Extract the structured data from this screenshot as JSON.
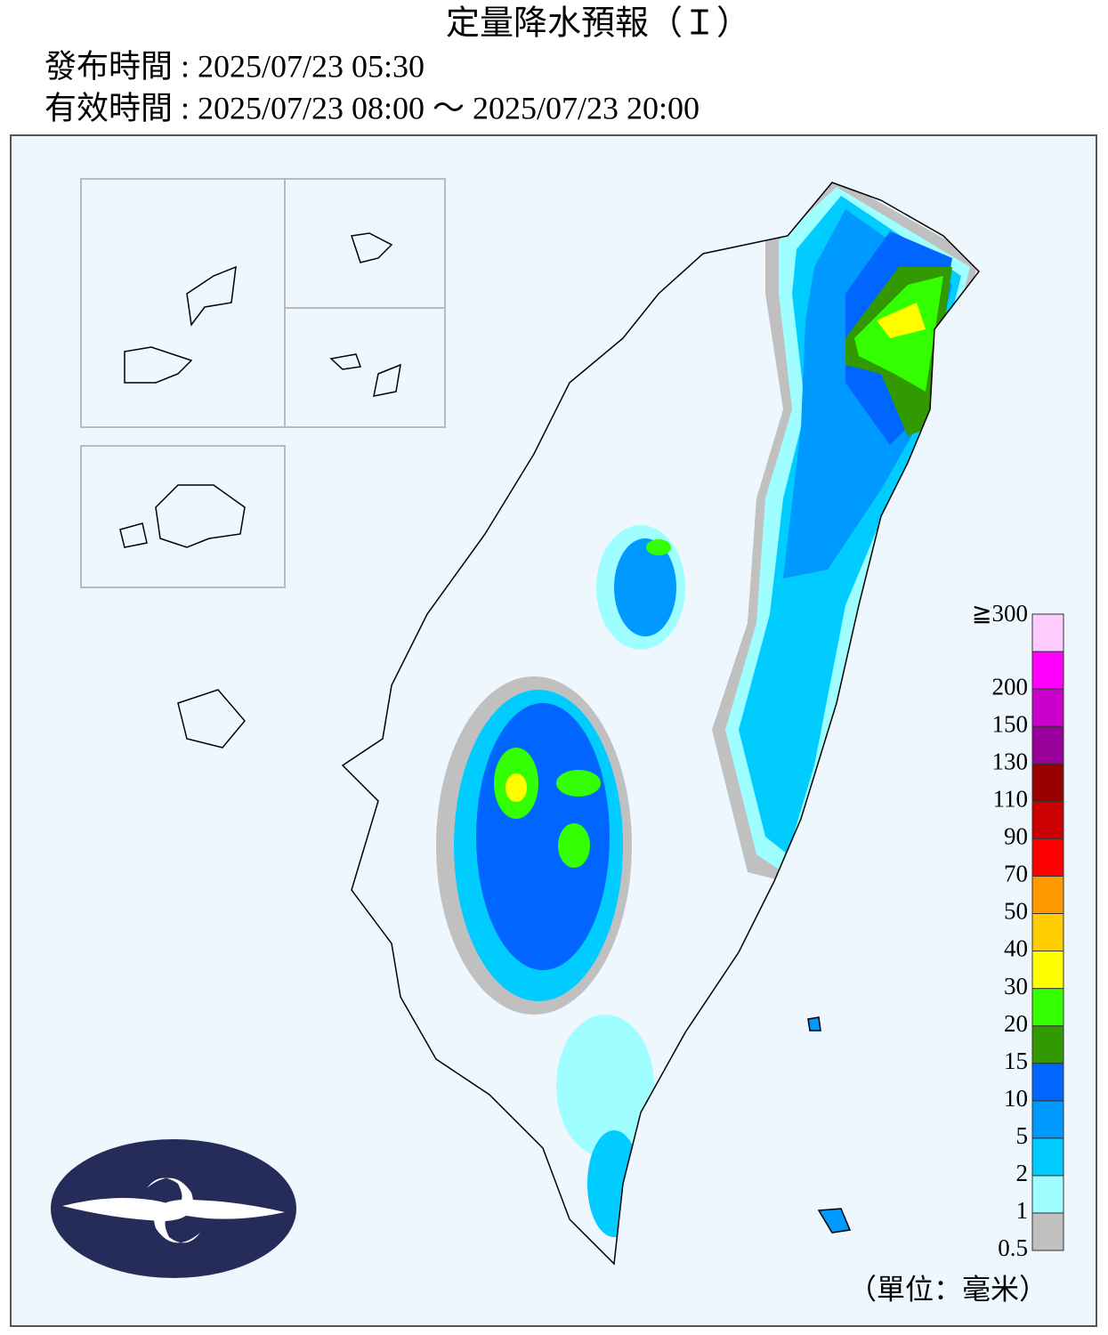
{
  "header": {
    "title": "定量降水預報（Ｉ）",
    "issue_time": "發布時間 : 2025/07/23 05:30",
    "valid_time": "有效時間 : 2025/07/23 08:00 ～ 2025/07/23 20:00"
  },
  "legend": {
    "entries": [
      {
        "label": "0.5",
        "color": "#c0c0c0"
      },
      {
        "label": "1",
        "color": "#9ffeff"
      },
      {
        "label": "2",
        "color": "#00ccff"
      },
      {
        "label": "5",
        "color": "#0099ff"
      },
      {
        "label": "10",
        "color": "#0066ff"
      },
      {
        "label": "15",
        "color": "#339900"
      },
      {
        "label": "20",
        "color": "#33ff00"
      },
      {
        "label": "30",
        "color": "#ffff00"
      },
      {
        "label": "40",
        "color": "#ffcc00"
      },
      {
        "label": "50",
        "color": "#ff9900"
      },
      {
        "label": "70",
        "color": "#ff0000"
      },
      {
        "label": "90",
        "color": "#cc0000"
      },
      {
        "label": "110",
        "color": "#990000"
      },
      {
        "label": "130",
        "color": "#990099"
      },
      {
        "label": "150",
        "color": "#cc00cc"
      },
      {
        "label": "200",
        "color": "#ff00ff"
      },
      {
        "label": "≧300",
        "color": "#ffccff"
      }
    ],
    "unit": "（單位：毫米）"
  }
}
